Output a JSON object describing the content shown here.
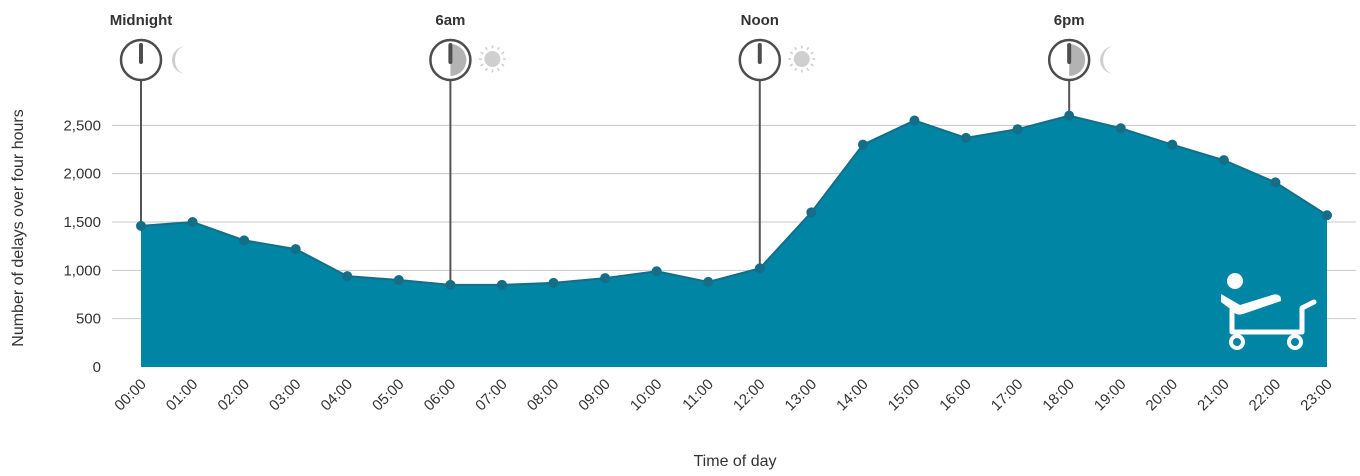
{
  "chart_data": {
    "type": "area",
    "xlabel": "Time of day",
    "ylabel": "Number of delays over four hours",
    "ylim": [
      0,
      3000
    ],
    "yticks": [
      0,
      500,
      1000,
      1500,
      2000,
      2500
    ],
    "ytick_labels": [
      "0",
      "500",
      "1,000",
      "1,500",
      "2,000",
      "2,500"
    ],
    "grid": "horizontal",
    "colors": {
      "area": "#0085a4",
      "point": "#156e87",
      "grid": "#c8c8c8",
      "marker": "#555555"
    },
    "categories": [
      "00:00",
      "01:00",
      "02:00",
      "03:00",
      "04:00",
      "05:00",
      "06:00",
      "07:00",
      "08:00",
      "09:00",
      "10:00",
      "11:00",
      "12:00",
      "13:00",
      "14:00",
      "15:00",
      "16:00",
      "17:00",
      "18:00",
      "19:00",
      "20:00",
      "21:00",
      "22:00",
      "23:00"
    ],
    "values": [
      1460,
      1500,
      1310,
      1220,
      940,
      900,
      850,
      850,
      870,
      920,
      990,
      880,
      1020,
      1600,
      2300,
      2550,
      2370,
      2460,
      2600,
      2470,
      2300,
      2140,
      1910,
      1570
    ],
    "time_markers": [
      {
        "label": "Midnight",
        "at": "00:00",
        "hand_fill": 0,
        "icon": "moon-icon"
      },
      {
        "label": "6am",
        "at": "06:00",
        "hand_fill": 0.5,
        "icon": "sun-icon"
      },
      {
        "label": "Noon",
        "at": "12:00",
        "hand_fill": 0,
        "icon": "sun-icon"
      },
      {
        "label": "6pm",
        "at": "18:00",
        "hand_fill": 0.5,
        "icon": "moon-icon"
      }
    ],
    "corner_icon": "hospital-trolley-icon"
  }
}
